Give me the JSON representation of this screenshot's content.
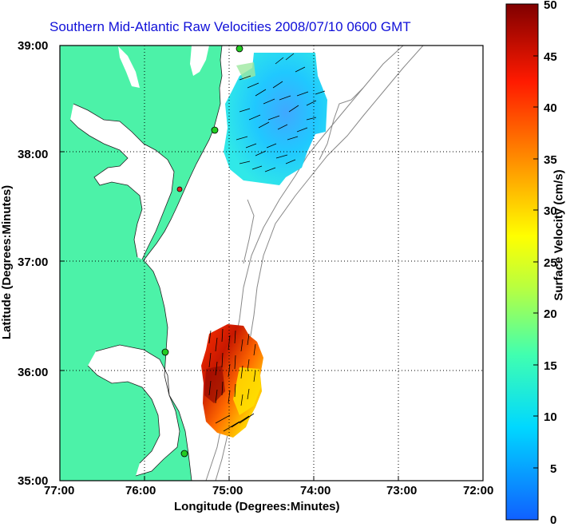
{
  "title": "Southern Mid-Atlantic Raw Velocities 2008/07/10 0600 GMT",
  "xlabel": "Longitude (Degrees:Minutes)",
  "ylabel": "Latitude (Degrees:Minutes)",
  "colorbar_label": "Surface Velocity (cm/s)",
  "x_ticks": [
    "77:00",
    "76:00",
    "75:00",
    "74:00",
    "73:00",
    "72:00"
  ],
  "y_ticks": [
    "39:00",
    "38:00",
    "37:00",
    "36:00",
    "35:00"
  ],
  "colorbar_ticks": [
    "50",
    "45",
    "40",
    "35",
    "30",
    "25",
    "20",
    "15",
    "10",
    "5",
    "0"
  ],
  "colors": {
    "land": "#4cf2a8",
    "water": "#ffffff",
    "title": "#1010d8",
    "station": "#22cc22",
    "station_alert": "#dd2222"
  },
  "map": {
    "lon_range": [
      -77,
      -72
    ],
    "lat_range": [
      35,
      39
    ],
    "grid": true
  }
}
